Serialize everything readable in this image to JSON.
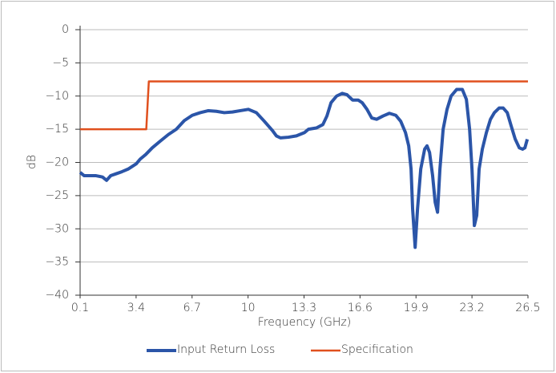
{
  "chart_data": {
    "type": "line",
    "x_label": "Frequency (GHz)",
    "y_label": "dB",
    "xlim": [
      0.1,
      26.5
    ],
    "xticks": [
      0.1,
      3.4,
      6.7,
      10,
      13.3,
      16.6,
      19.9,
      23.2,
      26.5
    ],
    "ylim": [
      -40,
      0
    ],
    "yticks": [
      {
        "value": -40,
        "label": "−40"
      },
      {
        "value": -35,
        "label": "−35"
      },
      {
        "value": -30,
        "label": "−30"
      },
      {
        "value": -25,
        "label": "−25"
      },
      {
        "value": -20,
        "label": "−20"
      },
      {
        "value": -15,
        "label": "−15"
      },
      {
        "value": -10,
        "label": "−10"
      },
      {
        "value": -5,
        "label": "−5"
      },
      0
    ],
    "grid": true,
    "legend": "bottom",
    "series": [
      {
        "name": "Input Return Loss",
        "color": "#2b55a8",
        "x": [
          0.1,
          0.34,
          1.04,
          1.42,
          1.66,
          1.9,
          2.23,
          2.56,
          2.93,
          3.41,
          3.64,
          3.97,
          4.35,
          4.82,
          5.3,
          5.77,
          6.24,
          6.71,
          7.18,
          7.66,
          8.13,
          8.6,
          9.08,
          9.55,
          10.02,
          10.49,
          10.96,
          11.44,
          11.67,
          11.91,
          12.38,
          12.85,
          13.33,
          13.56,
          14.03,
          14.41,
          14.65,
          14.89,
          15.22,
          15.55,
          15.83,
          16.16,
          16.49,
          16.73,
          17.01,
          17.29,
          17.58,
          17.96,
          18.33,
          18.71,
          19.0,
          19.28,
          19.47,
          19.61,
          19.7,
          19.85,
          19.99,
          20.18,
          20.41,
          20.55,
          20.7,
          20.88,
          21.03,
          21.17,
          21.31,
          21.5,
          21.73,
          21.97,
          22.3,
          22.63,
          22.87,
          23.06,
          23.2,
          23.34,
          23.48,
          23.62,
          23.81,
          24.05,
          24.29,
          24.52,
          24.8,
          25.04,
          25.28,
          25.51,
          25.75,
          25.99,
          26.18,
          26.32,
          26.46
        ],
        "values": [
          -21.5,
          -22,
          -22,
          -22.2,
          -22.7,
          -22,
          -21.7,
          -21.4,
          -21,
          -20.2,
          -19.5,
          -18.8,
          -17.8,
          -16.8,
          -15.8,
          -15,
          -13.7,
          -12.9,
          -12.5,
          -12.2,
          -12.3,
          -12.5,
          -12.4,
          -12.2,
          -12,
          -12.5,
          -13.8,
          -15.2,
          -16,
          -16.3,
          -16.2,
          -16,
          -15.5,
          -15,
          -14.8,
          -14.3,
          -13,
          -11,
          -10,
          -9.6,
          -9.8,
          -10.6,
          -10.6,
          -11,
          -12,
          -13.3,
          -13.5,
          -13,
          -12.6,
          -12.9,
          -13.8,
          -15.5,
          -17.5,
          -21,
          -27,
          -32.8,
          -27,
          -21,
          -18,
          -17.5,
          -18.5,
          -22,
          -26,
          -27.5,
          -21,
          -15,
          -12,
          -10,
          -9,
          -9,
          -10.5,
          -15,
          -21,
          -29.5,
          -28,
          -21,
          -18,
          -15.5,
          -13.5,
          -12.5,
          -11.8,
          -11.8,
          -12.5,
          -14.5,
          -16.5,
          -17.8,
          -18,
          -17.8,
          -16.5
        ]
      },
      {
        "name": "Specification",
        "color": "#e0501e",
        "x": [
          0.1,
          4.0,
          4.15,
          26.5
        ],
        "values": [
          -15,
          -15,
          -7.8,
          -7.8
        ]
      }
    ]
  }
}
